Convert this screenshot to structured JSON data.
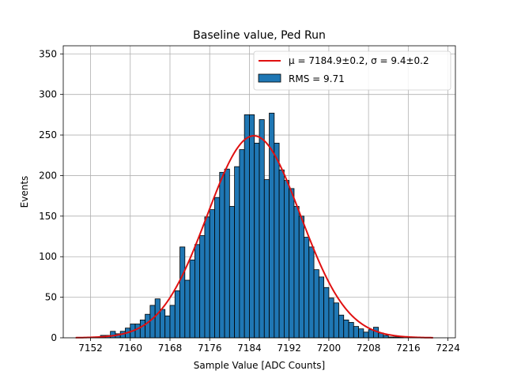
{
  "chart_data": {
    "type": "bar",
    "title": "Baseline value, Ped Run",
    "xlabel": "Sample Value [ADC Counts]",
    "ylabel": "Events",
    "xlim": [
      7146.5,
      7225.5
    ],
    "ylim": [
      0,
      360
    ],
    "x_ticks": [
      7152,
      7160,
      7168,
      7176,
      7184,
      7192,
      7200,
      7208,
      7216,
      7224
    ],
    "y_ticks": [
      0,
      50,
      100,
      150,
      200,
      250,
      300,
      350
    ],
    "grid": true,
    "bin_width": 1,
    "bins": [
      7150,
      7151,
      7152,
      7153,
      7154,
      7155,
      7156,
      7157,
      7158,
      7159,
      7160,
      7161,
      7162,
      7163,
      7164,
      7165,
      7166,
      7167,
      7168,
      7169,
      7170,
      7171,
      7172,
      7173,
      7174,
      7175,
      7176,
      7177,
      7178,
      7179,
      7180,
      7181,
      7182,
      7183,
      7184,
      7185,
      7186,
      7187,
      7188,
      7189,
      7190,
      7191,
      7192,
      7193,
      7194,
      7195,
      7196,
      7197,
      7198,
      7199,
      7200,
      7201,
      7202,
      7203,
      7204,
      7205,
      7206,
      7207,
      7208,
      7209,
      7210,
      7211,
      7212,
      7213,
      7214,
      7215,
      7216,
      7217,
      7218,
      7219,
      7220,
      7221
    ],
    "values": [
      0,
      0,
      1,
      1,
      3,
      3,
      8,
      5,
      8,
      12,
      17,
      17,
      22,
      29,
      40,
      48,
      35,
      27,
      40,
      58,
      112,
      71,
      96,
      115,
      126,
      149,
      158,
      173,
      204,
      208,
      162,
      211,
      232,
      275,
      275,
      240,
      269,
      195,
      277,
      240,
      207,
      194,
      184,
      162,
      150,
      124,
      112,
      84,
      75,
      62,
      49,
      43,
      28,
      22,
      19,
      14,
      11,
      7,
      10,
      13,
      6,
      3,
      1,
      1,
      1,
      0,
      0,
      0,
      0,
      0,
      0,
      0
    ],
    "fit": {
      "label": "μ = 7184.9±0.2, σ = 9.4±0.2",
      "mu": 7184.9,
      "sigma": 9.4,
      "amplitude": 249,
      "x_range": [
        7149,
        7221
      ],
      "color": "#e01010"
    },
    "bar_color": "#1f77b4",
    "bar_edge_color": "#000000",
    "legend": {
      "location": "top-right",
      "entries": [
        {
          "label": "μ = 7184.9±0.2, σ = 9.4±0.2",
          "kind": "line",
          "color": "#e01010"
        },
        {
          "label": "RMS = 9.71",
          "kind": "patch",
          "color": "#1f77b4"
        }
      ]
    }
  }
}
